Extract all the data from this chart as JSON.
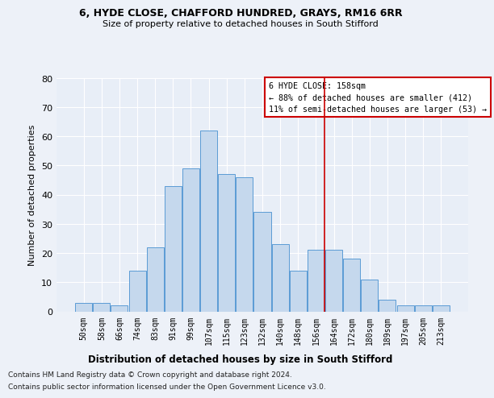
{
  "title1": "6, HYDE CLOSE, CHAFFORD HUNDRED, GRAYS, RM16 6RR",
  "title2": "Size of property relative to detached houses in South Stifford",
  "xlabel": "Distribution of detached houses by size in South Stifford",
  "ylabel": "Number of detached properties",
  "categories": [
    "50sqm",
    "58sqm",
    "66sqm",
    "74sqm",
    "83sqm",
    "91sqm",
    "99sqm",
    "107sqm",
    "115sqm",
    "123sqm",
    "132sqm",
    "140sqm",
    "148sqm",
    "156sqm",
    "164sqm",
    "172sqm",
    "180sqm",
    "189sqm",
    "197sqm",
    "205sqm",
    "213sqm"
  ],
  "values": [
    3,
    3,
    2,
    14,
    22,
    43,
    49,
    62,
    47,
    46,
    34,
    23,
    14,
    21,
    21,
    18,
    11,
    4,
    2,
    2,
    2
  ],
  "bar_color": "#c5d8ed",
  "bar_edge_color": "#5b9bd5",
  "background_color": "#e8eef7",
  "fig_background_color": "#edf1f8",
  "grid_color": "#ffffff",
  "vline_x": 13.5,
  "vline_color": "#cc0000",
  "legend_title": "6 HYDE CLOSE: 158sqm",
  "legend_line1": "← 88% of detached houses are smaller (412)",
  "legend_line2": "11% of semi-detached houses are larger (53) →",
  "footnote1": "Contains HM Land Registry data © Crown copyright and database right 2024.",
  "footnote2": "Contains public sector information licensed under the Open Government Licence v3.0.",
  "ylim": [
    0,
    80
  ],
  "yticks": [
    0,
    10,
    20,
    30,
    40,
    50,
    60,
    70,
    80
  ]
}
